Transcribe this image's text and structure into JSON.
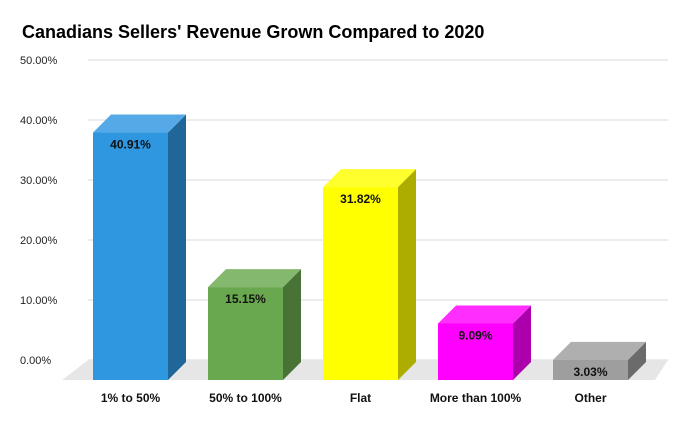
{
  "chart_data": {
    "type": "bar",
    "title": "Canadians Sellers' Revenue Grown Compared to 2020",
    "xlabel": "",
    "ylabel": "",
    "categories": [
      "1% to 50%",
      "50% to 100%",
      "Flat",
      "More than 100%",
      "Other"
    ],
    "values": [
      40.91,
      15.15,
      31.82,
      9.09,
      3.03
    ],
    "data_labels": [
      "40.91%",
      "15.15%",
      "31.82%",
      "9.09%",
      "3.03%"
    ],
    "yticks": [
      "0.00%",
      "10.00%",
      "20.00%",
      "30.00%",
      "40.00%",
      "50.00%"
    ],
    "ylim": [
      0,
      50
    ],
    "grid": true,
    "legend": "none",
    "style": "3d-column",
    "colors": [
      "#2f96e0",
      "#6aa84f",
      "#ffff00",
      "#ff00ff",
      "#9e9e9e"
    ]
  }
}
